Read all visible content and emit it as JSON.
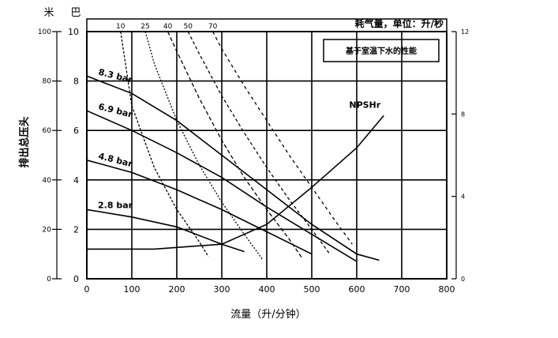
{
  "chart_data": {
    "type": "line",
    "left_axis_unit_m": "米",
    "left_axis_unit_bar": "巴",
    "ylabel": "排出总压头",
    "xlabel": "流量（升/分钟）",
    "top_axis_label": "耗气量，单位：升/秒",
    "legend_box_text": "基于室温下水的性能",
    "x_ticks": [
      0,
      100,
      200,
      300,
      400,
      500,
      600,
      700,
      800
    ],
    "xlim": [
      0,
      800
    ],
    "y_m_ticks": [
      0,
      20,
      40,
      60,
      80,
      100
    ],
    "ylim_m": [
      0,
      100
    ],
    "y_bar_ticks": [
      0,
      2,
      4,
      6,
      8,
      10
    ],
    "ylim_bar": [
      0,
      10
    ],
    "y_right_ticks": [
      0,
      4,
      8,
      12
    ],
    "ylim_right": [
      0,
      12
    ],
    "air_consumption_ticks": [
      "10",
      "25",
      "40",
      "50",
      "70"
    ],
    "grid": true,
    "series": [
      {
        "name": "8.3 bar",
        "x": [
          0,
          100,
          200,
          300,
          400,
          500,
          600,
          650
        ],
        "y": [
          8.2,
          7.5,
          6.4,
          5.0,
          3.6,
          2.2,
          1.0,
          0.75
        ]
      },
      {
        "name": "6.9 bar",
        "x": [
          0,
          100,
          200,
          300,
          400,
          500,
          600
        ],
        "y": [
          6.8,
          6.0,
          5.1,
          4.1,
          2.9,
          1.8,
          0.7
        ]
      },
      {
        "name": "4.8 bar",
        "x": [
          0,
          100,
          200,
          300,
          400,
          500
        ],
        "y": [
          4.8,
          4.3,
          3.6,
          2.8,
          1.9,
          1.0
        ]
      },
      {
        "name": "2.8 bar",
        "x": [
          0,
          100,
          200,
          300,
          350
        ],
        "y": [
          2.8,
          2.5,
          2.1,
          1.4,
          1.1
        ]
      },
      {
        "name": "NPSHr",
        "x": [
          0,
          150,
          300,
          400,
          500,
          600,
          660
        ],
        "y": [
          1.2,
          1.2,
          1.4,
          2.2,
          3.7,
          5.3,
          6.6
        ]
      }
    ],
    "air_consumption_curves": [
      {
        "label": "10",
        "x": [
          75,
          100,
          150,
          200,
          250,
          270
        ],
        "y": [
          10,
          7.0,
          4.5,
          2.8,
          1.5,
          0.9
        ]
      },
      {
        "label": "25",
        "x": [
          130,
          150,
          200,
          250,
          300,
          350,
          390
        ],
        "y": [
          10,
          8.7,
          6.4,
          4.6,
          3.1,
          1.8,
          0.8
        ]
      },
      {
        "label": "40",
        "x": [
          180,
          200,
          250,
          300,
          350,
          400,
          450,
          480
        ],
        "y": [
          10,
          9.2,
          7.3,
          5.6,
          4.1,
          2.8,
          1.6,
          0.8
        ]
      },
      {
        "label": "50",
        "x": [
          225,
          250,
          300,
          350,
          400,
          450,
          500,
          540
        ],
        "y": [
          10,
          9.1,
          7.4,
          5.9,
          4.5,
          3.2,
          2.0,
          1.0
        ]
      },
      {
        "label": "70",
        "x": [
          280,
          300,
          350,
          400,
          450,
          500,
          550,
          590
        ],
        "y": [
          10,
          9.3,
          7.8,
          6.4,
          5.0,
          3.7,
          2.4,
          1.4
        ]
      }
    ]
  }
}
